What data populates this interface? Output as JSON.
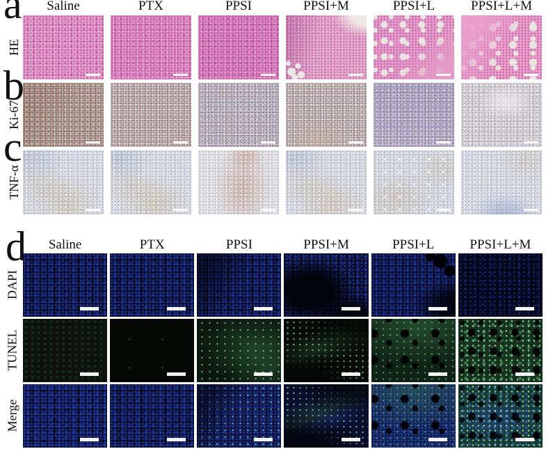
{
  "figure": {
    "panel_letters": [
      "a",
      "b",
      "c",
      "d"
    ],
    "columns": [
      "Saline",
      "PTX",
      "PPSI",
      "PPSI+M",
      "PPSI+L",
      "PPSI+L+M"
    ],
    "column_ids": [
      "saline",
      "ptx",
      "ppsi",
      "ppsim",
      "ppsil",
      "ppsilm"
    ],
    "ihc_rows": [
      {
        "id": "he",
        "label": "HE"
      },
      {
        "id": "ki67",
        "label": "Ki-67"
      },
      {
        "id": "tnf",
        "label": "TNF-α"
      }
    ],
    "if_rows": [
      {
        "id": "dapi",
        "label": "DAPI"
      },
      {
        "id": "tunel",
        "label": "TUNEL"
      },
      {
        "id": "merge",
        "label": "Merge"
      }
    ],
    "stain_colors": {
      "he_pink": "#e298c8",
      "ki67_tan": "#c8c1cb",
      "tnf_gray": "#d5dae2",
      "dapi_blue": "#0b0e33",
      "tunel_green": "#17331f",
      "merge_navy": "#0d1240",
      "scale_bar": "#ffffff"
    }
  }
}
